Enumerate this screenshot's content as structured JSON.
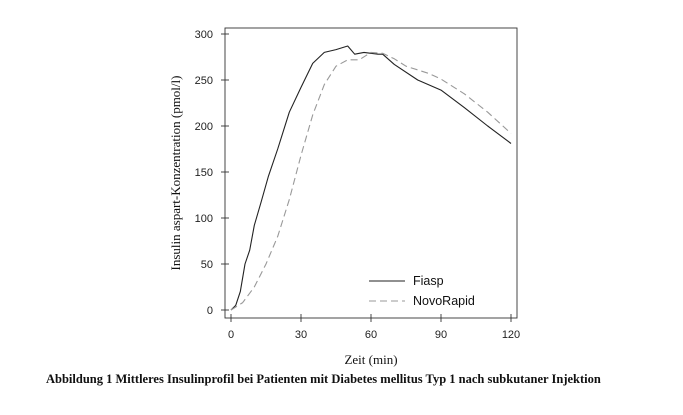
{
  "chart_data": {
    "type": "line",
    "title": "",
    "xlabel": "Zeit (min)",
    "ylabel": "Insulin aspart-Konzentration (pmol/l)",
    "xlim": [
      0,
      120
    ],
    "ylim": [
      0,
      300
    ],
    "xticks": [
      0,
      30,
      60,
      90,
      120
    ],
    "yticks": [
      0,
      50,
      100,
      150,
      200,
      250,
      300
    ],
    "grid": false,
    "legend_position": "bottom-right",
    "series": [
      {
        "name": "Fiasp",
        "style": "solid",
        "color": "#222222",
        "x": [
          0,
          2,
          4,
          6,
          8,
          10,
          13,
          16,
          20,
          25,
          30,
          35,
          40,
          45,
          50,
          53,
          57,
          60,
          63,
          65,
          70,
          80,
          90,
          100,
          110,
          120
        ],
        "y": [
          0,
          5,
          20,
          50,
          65,
          92,
          118,
          145,
          175,
          215,
          242,
          268,
          280,
          283,
          287,
          278,
          280,
          279,
          278,
          278,
          267,
          250,
          239,
          220,
          200,
          181
        ]
      },
      {
        "name": "NovoRapid",
        "style": "dashed",
        "color": "#999999",
        "x": [
          0,
          5,
          10,
          15,
          20,
          25,
          30,
          35,
          40,
          45,
          50,
          55,
          60,
          65,
          70,
          75,
          80,
          85,
          90,
          100,
          110,
          120
        ],
        "y": [
          0,
          8,
          25,
          50,
          80,
          120,
          168,
          212,
          245,
          265,
          272,
          272,
          280,
          279,
          273,
          265,
          261,
          257,
          251,
          235,
          215,
          192
        ]
      }
    ]
  },
  "caption": "Abbildung 1 Mittleres Insulinprofil bei Patienten mit Diabetes mellitus Typ 1 nach subkutaner Injektion"
}
